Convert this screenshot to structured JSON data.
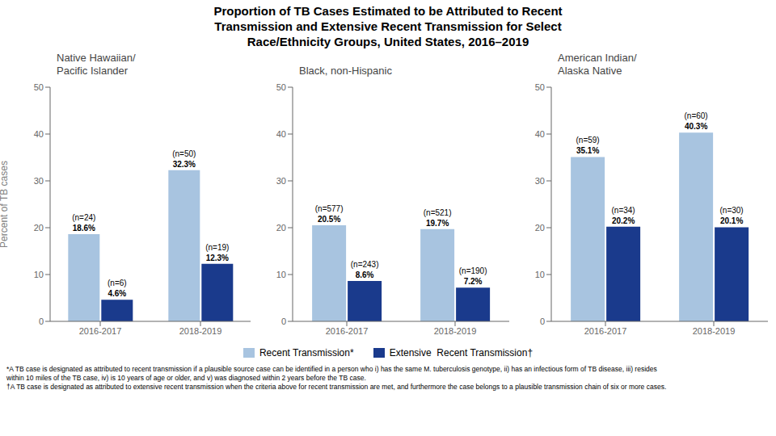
{
  "title": "Proportion of TB Cases Estimated to be Attributed to Recent\nTransmission and Extensive Recent Transmission for Select\nRace/Ethnicity Groups, United States, 2016–2019",
  "annotations": [
    "*A TB case is designated as attributed to recent transmission if a plausible source case can be identified in a person who i) has the same M. tuberculosis genotype, ii) has an infectious form of TB disease, iii) resides",
    "within 10 miles of the TB case, iv) is 10 years of age or older, and v) was diagnosed within 2 years before the TB case.",
    "†A TB case is designated as attributed to extensive recent transmission when the criteria above for recent transmission are met, and furthermore the case belongs to a plausible transmission chain of six or more cases."
  ],
  "chart_data": [
    {
      "type": "bar",
      "title": "Native Hawaiian/\nPacific Islander",
      "categories": [
        "2016-2017",
        "2018-2019"
      ],
      "series": [
        {
          "name": "Recent Transmission*",
          "color": "#a8c4e0",
          "values": [
            18.6,
            32.3
          ],
          "value_labels": [
            "18.6%",
            "32.3%"
          ],
          "count_labels": [
            "(n=24)",
            "(n=50)"
          ]
        },
        {
          "name": "Extensive  Recent Transmission†",
          "color": "#1a3a8c",
          "values": [
            4.6,
            12.3
          ],
          "value_labels": [
            "4.6%",
            "12.3%"
          ],
          "count_labels": [
            "(n=6)",
            "(n=19)"
          ]
        }
      ],
      "ylabel": "Percent of TB cases",
      "ylim": [
        0,
        50
      ],
      "yticks": [
        0,
        10,
        20,
        30,
        40,
        50
      ],
      "data_labels": true
    },
    {
      "type": "bar",
      "title": "Black, non-Hispanic",
      "categories": [
        "2016-2017",
        "2018-2019"
      ],
      "series": [
        {
          "name": "Recent Transmission*",
          "color": "#a8c4e0",
          "values": [
            20.5,
            19.7
          ],
          "value_labels": [
            "20.5%",
            "19.7%"
          ],
          "count_labels": [
            "(n=577)",
            "(n=521)"
          ]
        },
        {
          "name": "Extensive  Recent Transmission†",
          "color": "#1a3a8c",
          "values": [
            8.6,
            7.2
          ],
          "value_labels": [
            "8.6%",
            "7.2%"
          ],
          "count_labels": [
            "(n=243)",
            "(n=190)"
          ]
        }
      ],
      "ylim": [
        0,
        50
      ],
      "yticks": [
        0,
        10,
        20,
        30,
        40,
        50
      ],
      "data_labels": true
    },
    {
      "type": "bar",
      "title": "American Indian/\nAlaska Native",
      "categories": [
        "2016-2017",
        "2018-2019"
      ],
      "series": [
        {
          "name": "Recent Transmission*",
          "color": "#a8c4e0",
          "values": [
            35.1,
            40.3
          ],
          "value_labels": [
            "35.1%",
            "40.3%"
          ],
          "count_labels": [
            "(n=59)",
            "(n=60)"
          ]
        },
        {
          "name": "Extensive  Recent Transmission†",
          "color": "#1a3a8c",
          "values": [
            20.2,
            20.1
          ],
          "value_labels": [
            "20.2%",
            "20.1%"
          ],
          "count_labels": [
            "(n=34)",
            "(n=30)"
          ]
        }
      ],
      "ylim": [
        0,
        50
      ],
      "yticks": [
        0,
        10,
        20,
        30,
        40,
        50
      ],
      "data_labels": true
    }
  ]
}
